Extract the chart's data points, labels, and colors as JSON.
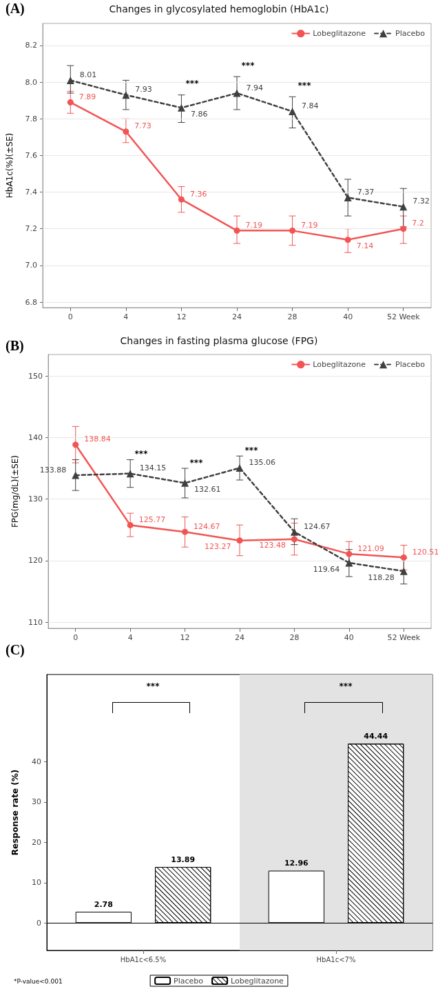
{
  "chart_data": [
    {
      "type": "line",
      "title": "Changes in glycosylated hemoglobin (HbA1c)",
      "ylabel": "HbA1c(%)(±SE)",
      "categories": [
        "0",
        "4",
        "12",
        "24",
        "28",
        "40",
        "52 Week"
      ],
      "series": [
        {
          "name": "Lobeglitazone",
          "color": "#f25454",
          "marker": "circle",
          "line_style": "solid",
          "values": [
            7.89,
            7.73,
            7.36,
            7.19,
            7.19,
            7.14,
            7.2
          ],
          "errors": [
            [
              7.83,
              7.95
            ],
            [
              7.67,
              7.8
            ],
            [
              7.29,
              7.43
            ],
            [
              7.12,
              7.27
            ],
            [
              7.11,
              7.27
            ],
            [
              7.07,
              7.2
            ],
            [
              7.12,
              7.27
            ]
          ]
        },
        {
          "name": "Placebo",
          "color": "#404040",
          "marker": "triangle",
          "line_style": "dashed",
          "values": [
            8.01,
            7.93,
            7.86,
            7.94,
            7.84,
            7.37,
            7.32
          ],
          "errors": [
            [
              7.94,
              8.09
            ],
            [
              7.85,
              8.01
            ],
            [
              7.78,
              7.93
            ],
            [
              7.85,
              8.03
            ],
            [
              7.75,
              7.92
            ],
            [
              7.27,
              7.47
            ],
            [
              7.21,
              7.42
            ]
          ]
        }
      ],
      "ylim": [
        6.77,
        8.32
      ],
      "yticks": [
        {
          "value": 6.8,
          "label": "6.8"
        },
        {
          "value": 7,
          "label": "7.0"
        },
        7.2,
        7.4,
        7.6,
        7.8,
        {
          "value": 8,
          "label": "8.0"
        },
        8.2
      ],
      "grid": "y",
      "legend": "top right",
      "data_labels": true,
      "annotations": [
        "(A)",
        "***",
        "***",
        "***"
      ]
    },
    {
      "type": "line",
      "title": "Changes in fasting plasma glucose (FPG)",
      "ylabel": "FPG(mg/dL)(±SE)",
      "categories": [
        "0",
        "4",
        "12",
        "24",
        "28",
        "40",
        "52 Week"
      ],
      "series": [
        {
          "name": "Lobeglitazone",
          "color": "#f25454",
          "marker": "circle",
          "line_style": "solid",
          "values": [
            138.84,
            125.77,
            124.67,
            123.27,
            123.48,
            121.09,
            120.51
          ],
          "errors": [
            [
              135.9,
              141.8
            ],
            [
              123.9,
              127.7
            ],
            [
              122.2,
              127.1
            ],
            [
              120.8,
              125.8
            ],
            [
              120.9,
              126.1
            ],
            [
              119.1,
              123.1
            ],
            [
              118.5,
              122.5
            ]
          ]
        },
        {
          "name": "Placebo",
          "color": "#404040",
          "marker": "triangle",
          "line_style": "dashed",
          "values": [
            133.88,
            134.15,
            132.61,
            135.06,
            124.67,
            119.64,
            118.28
          ],
          "errors": [
            [
              131.4,
              136.4
            ],
            [
              131.9,
              136.4
            ],
            [
              130.2,
              135.0
            ],
            [
              133.1,
              137.0
            ],
            [
              122.6,
              126.8
            ],
            [
              117.4,
              121.8
            ],
            [
              116.2,
              120.4
            ]
          ]
        }
      ],
      "ylim": [
        109,
        153.5
      ],
      "yticks": [
        110,
        120,
        130,
        140,
        150
      ],
      "grid": "y",
      "legend": "top right",
      "data_labels": true,
      "annotations": [
        "(B)",
        "***",
        "***",
        "***"
      ]
    },
    {
      "type": "bar",
      "ylabel": "Response rate (%)",
      "categories": [
        "HbA1c<6.5%",
        "HbA1c<7%"
      ],
      "series": [
        {
          "name": "Placebo",
          "color": "#ffffff",
          "values": [
            2.78,
            12.96
          ]
        },
        {
          "name": "Lobeglitazone",
          "color": "#000000",
          "values": [
            13.89,
            44.44
          ]
        }
      ],
      "ylim": [
        -6.8,
        61.6
      ],
      "yticks": [
        0,
        10,
        20,
        30,
        40
      ],
      "legend": "bottom",
      "data_labels": true,
      "ref_lines": [
        {
          "axis": "y",
          "value": 0
        }
      ],
      "bands": [
        {
          "axis": "x",
          "from": "HbA1c<7%",
          "to": "HbA1c<7%",
          "color": "#e3e3e3"
        }
      ],
      "annotations": [
        "(C)",
        "*P-value<0.001",
        "***",
        "***"
      ]
    }
  ]
}
